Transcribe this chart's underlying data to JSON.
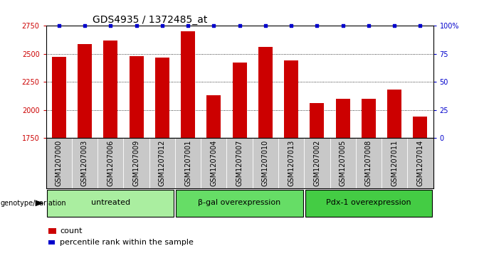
{
  "title": "GDS4935 / 1372485_at",
  "samples": [
    "GSM1207000",
    "GSM1207003",
    "GSM1207006",
    "GSM1207009",
    "GSM1207012",
    "GSM1207001",
    "GSM1207004",
    "GSM1207007",
    "GSM1207010",
    "GSM1207013",
    "GSM1207002",
    "GSM1207005",
    "GSM1207008",
    "GSM1207011",
    "GSM1207014"
  ],
  "counts": [
    2475,
    2585,
    2620,
    2480,
    2470,
    2700,
    2130,
    2420,
    2565,
    2440,
    2060,
    2100,
    2100,
    2180,
    1940
  ],
  "groups": [
    {
      "label": "untreated",
      "start": 0,
      "end": 5,
      "color": "#AAEEA0"
    },
    {
      "label": "β-gal overexpression",
      "start": 5,
      "end": 10,
      "color": "#66DD66"
    },
    {
      "label": "Pdx-1 overexpression",
      "start": 10,
      "end": 15,
      "color": "#44CC44"
    }
  ],
  "bar_color": "#CC0000",
  "dot_color": "#0000CC",
  "ylim_left": [
    1750,
    2750
  ],
  "ylim_right": [
    0,
    100
  ],
  "yticks_left": [
    1750,
    2000,
    2250,
    2500,
    2750
  ],
  "yticks_right": [
    0,
    25,
    50,
    75,
    100
  ],
  "yticklabels_right": [
    "0",
    "25",
    "50",
    "75",
    "100%"
  ],
  "left_color": "#CC0000",
  "right_color": "#0000CC",
  "title_fontsize": 10,
  "tick_fontsize": 7,
  "group_label_fontsize": 8,
  "legend_fontsize": 8,
  "bar_width": 0.55,
  "sample_bg_color": "#C8C8C8",
  "genotype_label": "genotype/variation",
  "legend_count_label": "count",
  "legend_percentile_label": "percentile rank within the sample"
}
